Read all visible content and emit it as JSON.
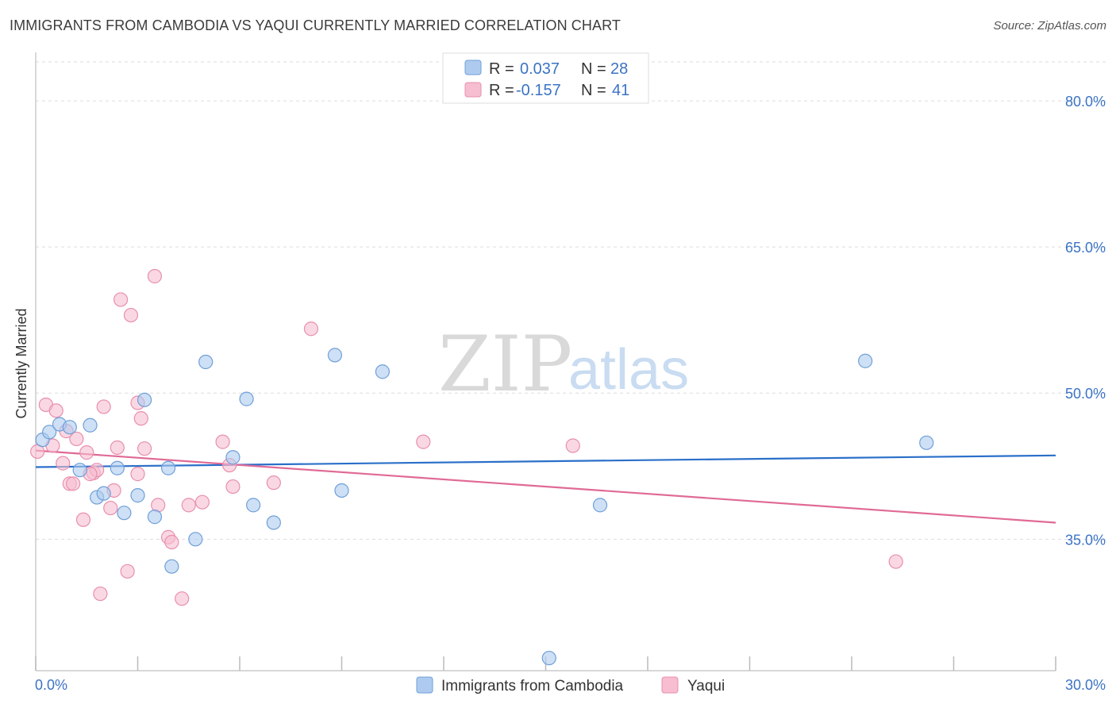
{
  "title": "IMMIGRANTS FROM CAMBODIA VS YAQUI CURRENTLY MARRIED CORRELATION CHART",
  "source": "Source: ZipAtlas.com",
  "colors": {
    "blue_fill": "#aecbef",
    "blue_stroke": "#6f9fd8",
    "blue_line": "#2a6fc9",
    "pink_fill": "#f6bed0",
    "pink_stroke": "#e88fad",
    "pink_line": "#e06a96",
    "grid": "#dddddd",
    "label": "#3b73c4"
  },
  "legend": {
    "row1": {
      "r_label": "R =",
      "r_value": "0.037",
      "n_label": "N =",
      "n_value": "28"
    },
    "row2": {
      "r_label": "R =",
      "r_value": "-0.157",
      "n_label": "N =",
      "n_value": "41"
    }
  },
  "watermark": {
    "zip": "ZIP",
    "atlas": "atlas"
  },
  "chart_data": {
    "type": "scatter",
    "title": "IMMIGRANTS FROM CAMBODIA VS YAQUI CURRENTLY MARRIED CORRELATION CHART",
    "xlabel": "",
    "ylabel": "Currently Married",
    "xlim": [
      0,
      30
    ],
    "ylim": [
      21.5,
      84
    ],
    "x_tick_labels": [
      "0.0%",
      "30.0%"
    ],
    "y_ticks": [
      35,
      50,
      65,
      80
    ],
    "y_tick_labels": [
      "35.0%",
      "50.0%",
      "65.0%",
      "80.0%"
    ],
    "grid": true,
    "series": [
      {
        "name": "Immigrants from Cambodia",
        "color": "#aecbef",
        "trend": {
          "x": [
            0,
            30
          ],
          "y": [
            42.4,
            43.6
          ]
        },
        "points": [
          [
            0.2,
            45.2
          ],
          [
            0.4,
            46.0
          ],
          [
            0.7,
            46.8
          ],
          [
            1.0,
            46.5
          ],
          [
            1.6,
            46.7
          ],
          [
            1.3,
            42.1
          ],
          [
            1.8,
            39.3
          ],
          [
            2.0,
            39.7
          ],
          [
            2.4,
            42.3
          ],
          [
            2.6,
            37.7
          ],
          [
            3.0,
            39.5
          ],
          [
            3.2,
            49.3
          ],
          [
            3.5,
            37.3
          ],
          [
            3.9,
            42.3
          ],
          [
            4.0,
            32.2
          ],
          [
            4.7,
            35.0
          ],
          [
            5.0,
            53.2
          ],
          [
            5.8,
            43.4
          ],
          [
            6.2,
            49.4
          ],
          [
            6.4,
            38.5
          ],
          [
            7.0,
            36.7
          ],
          [
            8.8,
            53.9
          ],
          [
            9.0,
            40.0
          ],
          [
            10.2,
            52.2
          ],
          [
            15.1,
            22.8
          ],
          [
            16.6,
            38.5
          ],
          [
            24.4,
            53.3
          ],
          [
            26.2,
            44.9
          ]
        ]
      },
      {
        "name": "Yaqui",
        "color": "#f6bed0",
        "trend": {
          "x": [
            0,
            30
          ],
          "y": [
            44.1,
            36.7
          ]
        },
        "points": [
          [
            0.05,
            44.0
          ],
          [
            0.3,
            48.8
          ],
          [
            0.5,
            44.6
          ],
          [
            0.6,
            48.2
          ],
          [
            0.8,
            42.8
          ],
          [
            1.0,
            40.7
          ],
          [
            1.1,
            40.7
          ],
          [
            1.2,
            45.3
          ],
          [
            1.4,
            37.0
          ],
          [
            1.5,
            43.9
          ],
          [
            1.7,
            41.8
          ],
          [
            1.8,
            42.1
          ],
          [
            1.9,
            29.4
          ],
          [
            2.0,
            48.6
          ],
          [
            2.2,
            38.2
          ],
          [
            2.3,
            40.0
          ],
          [
            2.4,
            44.4
          ],
          [
            2.5,
            59.6
          ],
          [
            2.7,
            31.7
          ],
          [
            2.8,
            58.0
          ],
          [
            3.0,
            41.7
          ],
          [
            3.0,
            49.0
          ],
          [
            3.1,
            47.4
          ],
          [
            3.2,
            44.3
          ],
          [
            3.5,
            62.0
          ],
          [
            3.6,
            38.5
          ],
          [
            3.9,
            35.2
          ],
          [
            4.0,
            34.7
          ],
          [
            4.3,
            28.9
          ],
          [
            4.5,
            38.5
          ],
          [
            4.9,
            38.8
          ],
          [
            5.5,
            45.0
          ],
          [
            5.7,
            42.6
          ],
          [
            5.8,
            40.4
          ],
          [
            7.0,
            40.8
          ],
          [
            8.1,
            56.6
          ],
          [
            11.4,
            45.0
          ],
          [
            15.8,
            44.6
          ],
          [
            25.3,
            32.7
          ],
          [
            0.9,
            46.1
          ],
          [
            1.6,
            41.7
          ]
        ]
      }
    ]
  }
}
